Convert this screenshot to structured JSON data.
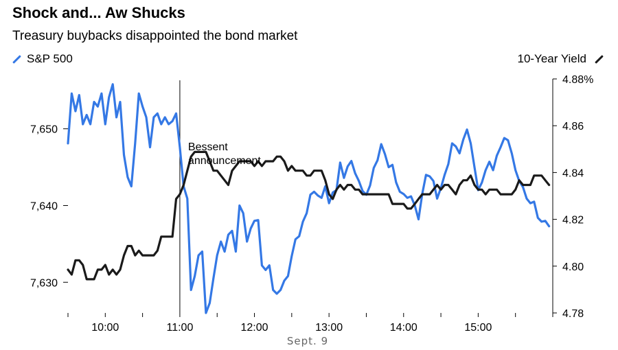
{
  "chart_data": {
    "type": "line",
    "title": "Shock and... Aw Shucks",
    "subtitle": "Treasury buybacks disappointed the bond market",
    "xlabel": "Sept. 9",
    "x_range": [
      "09:30",
      "16:00"
    ],
    "x_ticks": [
      "10:00",
      "11:00",
      "12:00",
      "13:00",
      "14:00",
      "15:00"
    ],
    "grid": false,
    "legend": [
      {
        "name": "S&P 500",
        "placement": "top-left",
        "color": "#3478e5"
      },
      {
        "name": "10-Year Yield",
        "placement": "top-right",
        "color": "#1a1a1a"
      }
    ],
    "y_left": {
      "ticks": [
        "7,630",
        "7,640",
        "7,650"
      ],
      "tick_values": [
        7630,
        7640,
        7650
      ],
      "range": [
        7626.0,
        7656.5
      ]
    },
    "y_right": {
      "ticks": [
        "4.78",
        "4.80",
        "4.82",
        "4.84",
        "4.86",
        "4.88%"
      ],
      "tick_values": [
        4.78,
        4.8,
        4.82,
        4.84,
        4.86,
        4.88
      ],
      "range": [
        4.78,
        4.88
      ]
    },
    "annotation": {
      "text_lines": [
        "Bessent",
        "announcement"
      ],
      "time": "11:00"
    },
    "series": [
      {
        "name": "S&P 500",
        "axis": "left",
        "color": "#3478e5",
        "points": [
          [
            "09:30",
            7648.1
          ],
          [
            "09:33",
            7654.6
          ],
          [
            "09:36",
            7652.3
          ],
          [
            "09:39",
            7654.4
          ],
          [
            "09:42",
            7650.6
          ],
          [
            "09:45",
            7651.8
          ],
          [
            "09:48",
            7650.6
          ],
          [
            "09:51",
            7653.5
          ],
          [
            "09:54",
            7652.9
          ],
          [
            "09:57",
            7654.6
          ],
          [
            "10:00",
            7650.6
          ],
          [
            "10:03",
            7654.1
          ],
          [
            "10:06",
            7655.8
          ],
          [
            "10:09",
            7651.5
          ],
          [
            "10:12",
            7653.5
          ],
          [
            "10:15",
            7646.6
          ],
          [
            "10:18",
            7643.7
          ],
          [
            "10:21",
            7642.5
          ],
          [
            "10:24",
            7648.1
          ],
          [
            "10:27",
            7654.6
          ],
          [
            "10:30",
            7652.9
          ],
          [
            "10:33",
            7651.5
          ],
          [
            "10:36",
            7647.6
          ],
          [
            "10:39",
            7651.5
          ],
          [
            "10:42",
            7652.0
          ],
          [
            "10:45",
            7650.6
          ],
          [
            "10:48",
            7651.5
          ],
          [
            "10:51",
            7650.6
          ],
          [
            "10:54",
            7651.0
          ],
          [
            "10:57",
            7652.0
          ],
          [
            "11:00",
            7647.6
          ],
          [
            "11:03",
            7642.5
          ],
          [
            "11:06",
            7640.9
          ],
          [
            "11:09",
            7629.0
          ],
          [
            "11:12",
            7630.8
          ],
          [
            "11:15",
            7633.5
          ],
          [
            "11:18",
            7634.0
          ],
          [
            "11:21",
            7626.0
          ],
          [
            "11:24",
            7627.3
          ],
          [
            "11:27",
            7630.5
          ],
          [
            "11:30",
            7633.5
          ],
          [
            "11:33",
            7635.3
          ],
          [
            "11:36",
            7634.0
          ],
          [
            "11:39",
            7636.2
          ],
          [
            "11:42",
            7636.7
          ],
          [
            "11:45",
            7634.0
          ],
          [
            "11:48",
            7640.0
          ],
          [
            "11:51",
            7639.0
          ],
          [
            "11:54",
            7635.3
          ],
          [
            "11:57",
            7637.0
          ],
          [
            "12:00",
            7638.0
          ],
          [
            "12:03",
            7638.1
          ],
          [
            "12:06",
            7632.2
          ],
          [
            "12:09",
            7631.6
          ],
          [
            "12:12",
            7632.2
          ],
          [
            "12:15",
            7629.0
          ],
          [
            "12:18",
            7628.5
          ],
          [
            "12:21",
            7629.0
          ],
          [
            "12:24",
            7630.2
          ],
          [
            "12:27",
            7630.8
          ],
          [
            "12:30",
            7633.4
          ],
          [
            "12:33",
            7635.6
          ],
          [
            "12:36",
            7636.0
          ],
          [
            "12:39",
            7637.9
          ],
          [
            "12:42",
            7639.0
          ],
          [
            "12:45",
            7641.4
          ],
          [
            "12:48",
            7641.8
          ],
          [
            "12:51",
            7641.3
          ],
          [
            "12:54",
            7641.0
          ],
          [
            "12:57",
            7642.5
          ],
          [
            "13:00",
            7640.3
          ],
          [
            "13:03",
            7641.7
          ],
          [
            "13:06",
            7642.0
          ],
          [
            "13:09",
            7645.6
          ],
          [
            "13:12",
            7643.6
          ],
          [
            "13:15",
            7645.1
          ],
          [
            "13:18",
            7645.8
          ],
          [
            "13:21",
            7644.2
          ],
          [
            "13:24",
            7643.2
          ],
          [
            "13:27",
            7641.9
          ],
          [
            "13:30",
            7641.4
          ],
          [
            "13:33",
            7642.6
          ],
          [
            "13:36",
            7644.9
          ],
          [
            "13:39",
            7645.9
          ],
          [
            "13:42",
            7648.0
          ],
          [
            "13:45",
            7646.7
          ],
          [
            "13:48",
            7645.0
          ],
          [
            "13:51",
            7645.3
          ],
          [
            "13:54",
            7643.0
          ],
          [
            "13:57",
            7641.8
          ],
          [
            "14:00",
            7641.5
          ],
          [
            "14:03",
            7641.0
          ],
          [
            "14:06",
            7641.2
          ],
          [
            "14:09",
            7640.0
          ],
          [
            "14:12",
            7638.2
          ],
          [
            "14:15",
            7641.5
          ],
          [
            "14:18",
            7644.0
          ],
          [
            "14:21",
            7643.8
          ],
          [
            "14:24",
            7643.2
          ],
          [
            "14:27",
            7640.9
          ],
          [
            "14:30",
            7642.3
          ],
          [
            "14:33",
            7644.0
          ],
          [
            "14:36",
            7645.4
          ],
          [
            "14:39",
            7648.1
          ],
          [
            "14:42",
            7647.7
          ],
          [
            "14:45",
            7646.8
          ],
          [
            "14:48",
            7648.6
          ],
          [
            "14:51",
            7649.9
          ],
          [
            "14:54",
            7648.1
          ],
          [
            "14:57",
            7645.0
          ],
          [
            "15:00",
            7642.0
          ],
          [
            "15:03",
            7643.0
          ],
          [
            "15:06",
            7644.6
          ],
          [
            "15:09",
            7645.7
          ],
          [
            "15:12",
            7644.6
          ],
          [
            "15:15",
            7646.5
          ],
          [
            "15:18",
            7647.6
          ],
          [
            "15:21",
            7648.8
          ],
          [
            "15:24",
            7648.5
          ],
          [
            "15:27",
            7646.8
          ],
          [
            "15:30",
            7644.6
          ],
          [
            "15:33",
            7643.2
          ],
          [
            "15:36",
            7642.4
          ],
          [
            "15:39",
            7640.9
          ],
          [
            "15:42",
            7640.3
          ],
          [
            "15:45",
            7640.5
          ],
          [
            "15:48",
            7638.4
          ],
          [
            "15:51",
            7637.9
          ],
          [
            "15:54",
            7638.0
          ],
          [
            "15:57",
            7637.3
          ]
        ]
      },
      {
        "name": "10-Year Yield",
        "axis": "right",
        "color": "#1a1a1a",
        "points": [
          [
            "09:30",
            4.7985
          ],
          [
            "09:33",
            4.7964
          ],
          [
            "09:36",
            4.8025
          ],
          [
            "09:39",
            4.8025
          ],
          [
            "09:42",
            4.8005
          ],
          [
            "09:45",
            4.7944
          ],
          [
            "09:48",
            4.7944
          ],
          [
            "09:51",
            4.7944
          ],
          [
            "09:54",
            4.7985
          ],
          [
            "09:57",
            4.7985
          ],
          [
            "10:00",
            4.8005
          ],
          [
            "10:03",
            4.7964
          ],
          [
            "10:06",
            4.7985
          ],
          [
            "10:09",
            4.7964
          ],
          [
            "10:12",
            4.7985
          ],
          [
            "10:15",
            4.8046
          ],
          [
            "10:18",
            4.8086
          ],
          [
            "10:21",
            4.8086
          ],
          [
            "10:24",
            4.8046
          ],
          [
            "10:27",
            4.8066
          ],
          [
            "10:30",
            4.8046
          ],
          [
            "10:33",
            4.8046
          ],
          [
            "10:36",
            4.8046
          ],
          [
            "10:39",
            4.8046
          ],
          [
            "10:42",
            4.8066
          ],
          [
            "10:45",
            4.8126
          ],
          [
            "10:48",
            4.8126
          ],
          [
            "10:51",
            4.8126
          ],
          [
            "10:54",
            4.8126
          ],
          [
            "10:57",
            4.8287
          ],
          [
            "11:00",
            4.8307
          ],
          [
            "11:03",
            4.8347
          ],
          [
            "11:06",
            4.8408
          ],
          [
            "11:09",
            4.8468
          ],
          [
            "11:12",
            4.8488
          ],
          [
            "11:15",
            4.8488
          ],
          [
            "11:18",
            4.8488
          ],
          [
            "11:21",
            4.8488
          ],
          [
            "11:24",
            4.8448
          ],
          [
            "11:27",
            4.8408
          ],
          [
            "11:30",
            4.8408
          ],
          [
            "11:33",
            4.8387
          ],
          [
            "11:36",
            4.8367
          ],
          [
            "11:39",
            4.8347
          ],
          [
            "11:42",
            4.8408
          ],
          [
            "11:45",
            4.8428
          ],
          [
            "11:48",
            4.8448
          ],
          [
            "11:51",
            4.8448
          ],
          [
            "11:54",
            4.8448
          ],
          [
            "11:57",
            4.8448
          ],
          [
            "12:00",
            4.8428
          ],
          [
            "12:03",
            4.8448
          ],
          [
            "12:06",
            4.8428
          ],
          [
            "12:09",
            4.8448
          ],
          [
            "12:12",
            4.8448
          ],
          [
            "12:15",
            4.8448
          ],
          [
            "12:18",
            4.8468
          ],
          [
            "12:21",
            4.8468
          ],
          [
            "12:24",
            4.8448
          ],
          [
            "12:27",
            4.8408
          ],
          [
            "12:30",
            4.8428
          ],
          [
            "12:33",
            4.8408
          ],
          [
            "12:36",
            4.8408
          ],
          [
            "12:39",
            4.8408
          ],
          [
            "12:42",
            4.8387
          ],
          [
            "12:45",
            4.8387
          ],
          [
            "12:48",
            4.8408
          ],
          [
            "12:51",
            4.8408
          ],
          [
            "12:54",
            4.8408
          ],
          [
            "12:57",
            4.8367
          ],
          [
            "13:00",
            4.8307
          ],
          [
            "13:03",
            4.8287
          ],
          [
            "13:06",
            4.8327
          ],
          [
            "13:09",
            4.8347
          ],
          [
            "13:12",
            4.8327
          ],
          [
            "13:15",
            4.8347
          ],
          [
            "13:18",
            4.8347
          ],
          [
            "13:21",
            4.8327
          ],
          [
            "13:24",
            4.8327
          ],
          [
            "13:27",
            4.8307
          ],
          [
            "13:30",
            4.8307
          ],
          [
            "13:33",
            4.8307
          ],
          [
            "13:36",
            4.8307
          ],
          [
            "13:39",
            4.8307
          ],
          [
            "13:42",
            4.8307
          ],
          [
            "13:45",
            4.8307
          ],
          [
            "13:48",
            4.8307
          ],
          [
            "13:51",
            4.8266
          ],
          [
            "13:54",
            4.8266
          ],
          [
            "13:57",
            4.8266
          ],
          [
            "14:00",
            4.8266
          ],
          [
            "14:03",
            4.8246
          ],
          [
            "14:06",
            4.8246
          ],
          [
            "14:09",
            4.8266
          ],
          [
            "14:12",
            4.8287
          ],
          [
            "14:15",
            4.8307
          ],
          [
            "14:18",
            4.8307
          ],
          [
            "14:21",
            4.8307
          ],
          [
            "14:24",
            4.8327
          ],
          [
            "14:27",
            4.8347
          ],
          [
            "14:30",
            4.8327
          ],
          [
            "14:33",
            4.8347
          ],
          [
            "14:36",
            4.8347
          ],
          [
            "14:39",
            4.8327
          ],
          [
            "14:42",
            4.8307
          ],
          [
            "14:45",
            4.8347
          ],
          [
            "14:48",
            4.8367
          ],
          [
            "14:51",
            4.8367
          ],
          [
            "14:54",
            4.8387
          ],
          [
            "14:57",
            4.8347
          ],
          [
            "15:00",
            4.8327
          ],
          [
            "15:03",
            4.8327
          ],
          [
            "15:06",
            4.8307
          ],
          [
            "15:09",
            4.8327
          ],
          [
            "15:12",
            4.8327
          ],
          [
            "15:15",
            4.8327
          ],
          [
            "15:18",
            4.8307
          ],
          [
            "15:21",
            4.8307
          ],
          [
            "15:24",
            4.8307
          ],
          [
            "15:27",
            4.8307
          ],
          [
            "15:30",
            4.8327
          ],
          [
            "15:33",
            4.8367
          ],
          [
            "15:36",
            4.8347
          ],
          [
            "15:39",
            4.8347
          ],
          [
            "15:42",
            4.8347
          ],
          [
            "15:45",
            4.8387
          ],
          [
            "15:48",
            4.8387
          ],
          [
            "15:51",
            4.8387
          ],
          [
            "15:54",
            4.8367
          ],
          [
            "15:57",
            4.8347
          ]
        ]
      }
    ]
  }
}
